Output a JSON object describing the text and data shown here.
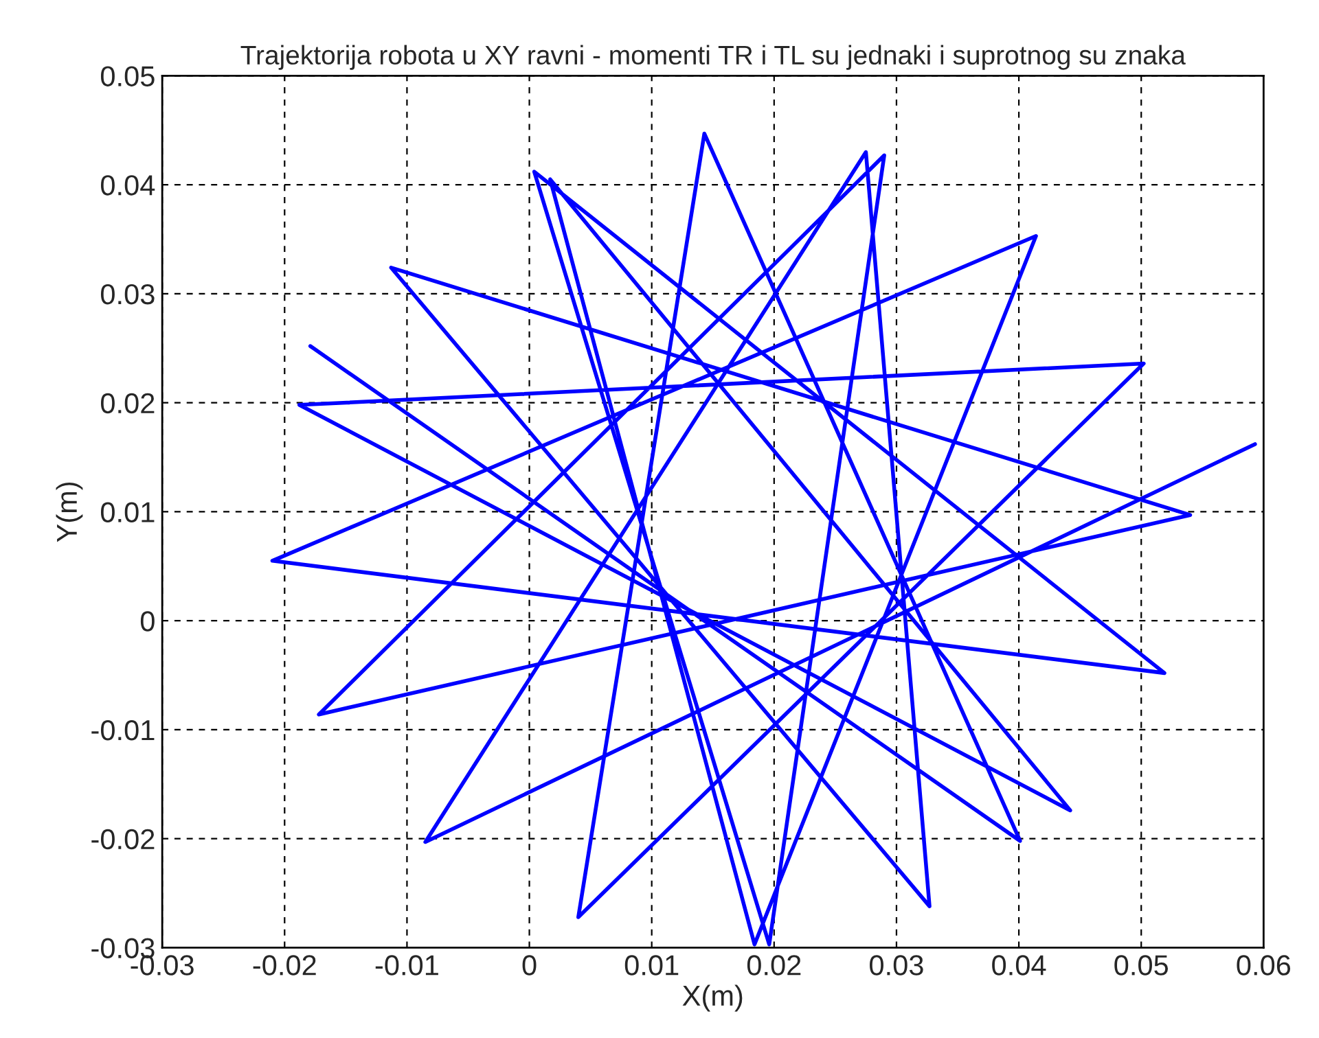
{
  "chart_data": {
    "type": "line",
    "title": "Trajektorija robota u XY ravni - momenti TR i TL su jednaki i suprotnog su znaka",
    "xlabel": "X(m)",
    "ylabel": "Y(m)",
    "series": [
      {
        "color": "#0000ff",
        "x": [
          -0.0179,
          0.0401,
          0.0143,
          0.004,
          0.0502,
          -0.0188,
          0.0442,
          0.0017,
          0.0184,
          0.0414,
          -0.021,
          0.0519,
          0.0004,
          0.0196,
          0.029,
          -0.0172,
          0.054,
          -0.0113,
          0.0327,
          0.0275,
          -0.0085,
          0.0593
        ],
        "values": [
          0.0252,
          -0.0202,
          0.0447,
          -0.0272,
          0.0236,
          0.0198,
          -0.0174,
          0.0405,
          -0.0297,
          0.0353,
          0.0055,
          -0.0048,
          0.0412,
          -0.0297,
          0.0427,
          -0.0086,
          0.0097,
          0.0324,
          -0.0262,
          0.043,
          -0.0203,
          0.0162
        ]
      }
    ],
    "xlim": [
      -0.03,
      0.06
    ],
    "xticks": [
      -0.03,
      -0.02,
      -0.01,
      0,
      0.01,
      0.02,
      0.03,
      0.04,
      0.05,
      0.06
    ],
    "ylim": [
      -0.03,
      0.05
    ],
    "yticks": [
      -0.03,
      -0.02,
      -0.01,
      0,
      0.01,
      0.02,
      0.03,
      0.04,
      0.05
    ],
    "grid": true,
    "marker": "none",
    "line_style": "solid",
    "legend": false
  }
}
